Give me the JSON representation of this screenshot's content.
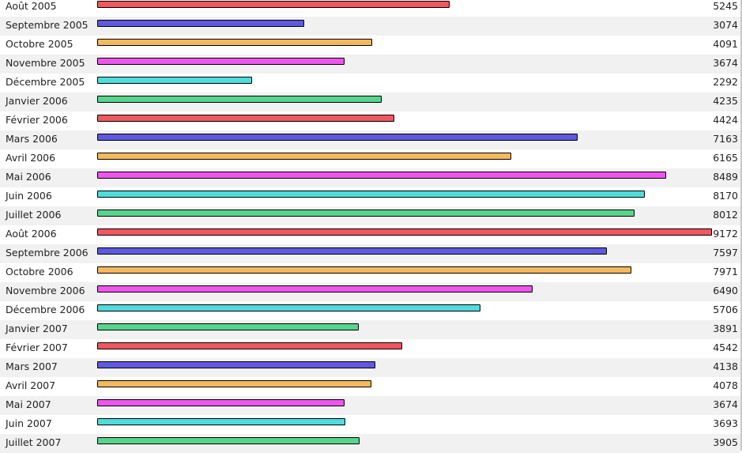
{
  "colors": {
    "red": "#f2575f",
    "blue": "#5e59e0",
    "orange": "#f6b85c",
    "magenta": "#ee55ee",
    "cyan": "#4fdcdc",
    "green": "#58d58c"
  },
  "chart_data": {
    "type": "bar",
    "orientation": "horizontal",
    "xlim": [
      0,
      9172
    ],
    "grid": false,
    "legend": "none",
    "categories": [
      "Août 2005",
      "Septembre 2005",
      "Octobre 2005",
      "Novembre 2005",
      "Décembre 2005",
      "Janvier 2006",
      "Février 2006",
      "Mars 2006",
      "Avril 2006",
      "Mai 2006",
      "Juin 2006",
      "Juillet 2006",
      "Août 2006",
      "Septembre 2006",
      "Octobre 2006",
      "Novembre 2006",
      "Décembre 2006",
      "Janvier 2007",
      "Février 2007",
      "Mars 2007",
      "Avril 2007",
      "Mai 2007",
      "Juin 2007",
      "Juillet 2007"
    ],
    "values": [
      5245,
      3074,
      4091,
      3674,
      2292,
      4235,
      4424,
      7163,
      6165,
      8489,
      8170,
      8012,
      9172,
      7597,
      7971,
      6490,
      5706,
      3891,
      4542,
      4138,
      4078,
      3674,
      3693,
      3905
    ],
    "bar_colors": [
      "#f2575f",
      "#5e59e0",
      "#f6b85c",
      "#ee55ee",
      "#4fdcdc",
      "#58d58c",
      "#f2575f",
      "#5e59e0",
      "#f6b85c",
      "#ee55ee",
      "#4fdcdc",
      "#58d58c",
      "#f2575f",
      "#5e59e0",
      "#f6b85c",
      "#ee55ee",
      "#4fdcdc",
      "#58d58c",
      "#f2575f",
      "#5e59e0",
      "#f6b85c",
      "#ee55ee",
      "#4fdcdc",
      "#58d58c"
    ]
  }
}
